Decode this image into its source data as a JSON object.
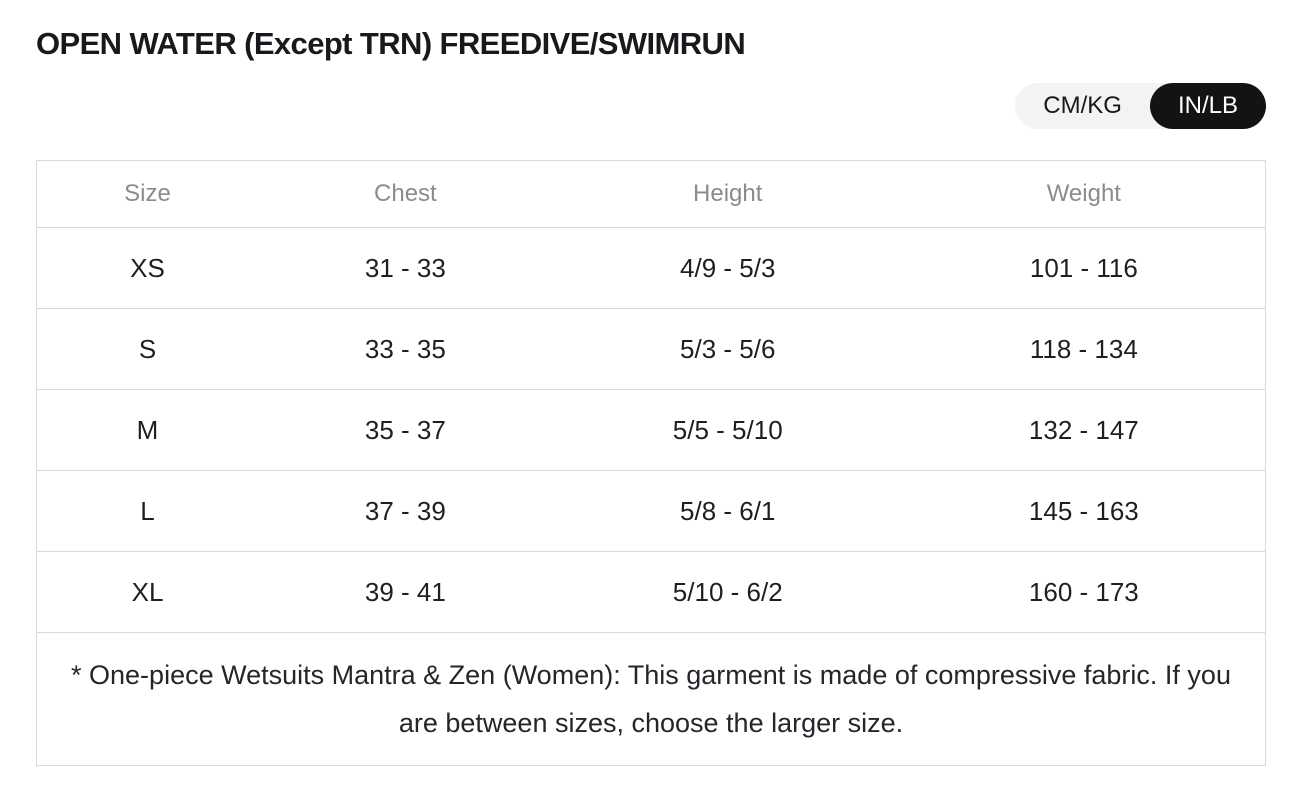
{
  "title": "OPEN WATER (Except TRN) FREEDIVE/SWIMRUN",
  "unit_toggle": {
    "options": [
      {
        "label": "CM/KG",
        "active": false
      },
      {
        "label": "IN/LB",
        "active": true
      }
    ]
  },
  "colors": {
    "active_toggle_bg": "#131313",
    "active_toggle_text": "#ffffff",
    "toggle_bg": "#f3f3f3",
    "table_border": "#d9d9d9",
    "header_text": "#8b8b8b",
    "body_text": "#1c1f24"
  },
  "table": {
    "headers": [
      "Size",
      "Chest",
      "Height",
      "Weight"
    ],
    "rows": [
      {
        "size": "XS",
        "chest": "31 - 33",
        "height": "4/9 - 5/3",
        "weight": "101 - 116"
      },
      {
        "size": "S",
        "chest": "33 - 35",
        "height": "5/3 - 5/6",
        "weight": "118 - 134"
      },
      {
        "size": "M",
        "chest": "35 - 37",
        "height": "5/5 - 5/10",
        "weight": "132 - 147"
      },
      {
        "size": "L",
        "chest": "37 - 39",
        "height": "5/8 - 6/1",
        "weight": "145 - 163"
      },
      {
        "size": "XL",
        "chest": "39 - 41",
        "height": "5/10 - 6/2",
        "weight": "160 - 173"
      }
    ],
    "footnote": "* One-piece Wetsuits Mantra & Zen (Women): This garment is made of compressive fabric. If you are between sizes, choose the larger size."
  }
}
